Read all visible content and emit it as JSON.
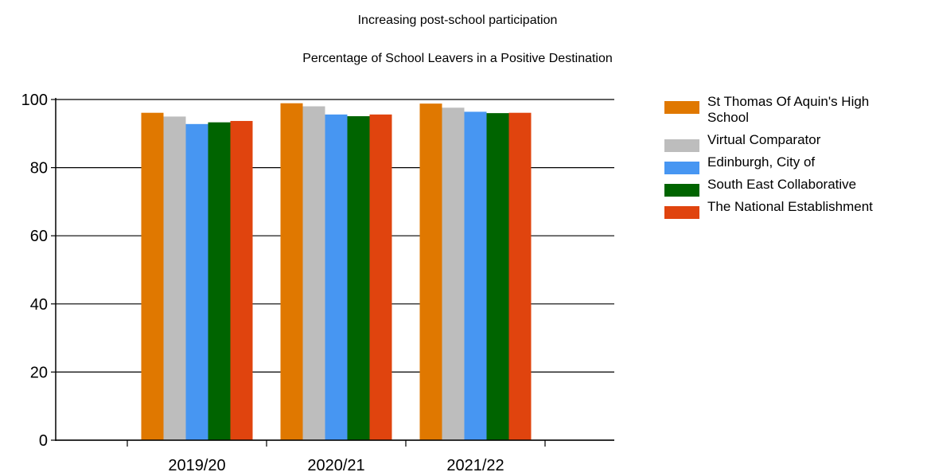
{
  "chart_data": {
    "type": "bar",
    "title": "Increasing post-school participation",
    "subtitle": "Percentage of School Leavers in a Positive Destination",
    "xlabel": "",
    "ylabel": "",
    "ylim": [
      0,
      100
    ],
    "yticks": [
      0,
      20,
      40,
      60,
      80,
      100
    ],
    "grid": true,
    "legend_position": "right",
    "categories": [
      "2019/20",
      "2020/21",
      "2021/22"
    ],
    "series": [
      {
        "name": "St Thomas Of Aquin's High School",
        "legend_lines": [
          "St Thomas Of Aquin's High",
          "School"
        ],
        "color": "#e07800",
        "values": [
          96.1,
          98.9,
          98.8
        ]
      },
      {
        "name": "Virtual Comparator",
        "legend_lines": [
          "Virtual Comparator"
        ],
        "color": "#bdbdbd",
        "values": [
          95.0,
          98.0,
          97.6
        ]
      },
      {
        "name": "Edinburgh, City of",
        "legend_lines": [
          "Edinburgh, City of"
        ],
        "color": "#4796f2",
        "values": [
          92.8,
          95.6,
          96.4
        ]
      },
      {
        "name": "South East Collaborative",
        "legend_lines": [
          "South East Collaborative"
        ],
        "color": "#006400",
        "values": [
          93.3,
          95.1,
          96.0
        ]
      },
      {
        "name": "The National Establishment",
        "legend_lines": [
          "The National Establishment"
        ],
        "color": "#e0440e",
        "values": [
          93.7,
          95.6,
          96.1
        ]
      }
    ]
  }
}
